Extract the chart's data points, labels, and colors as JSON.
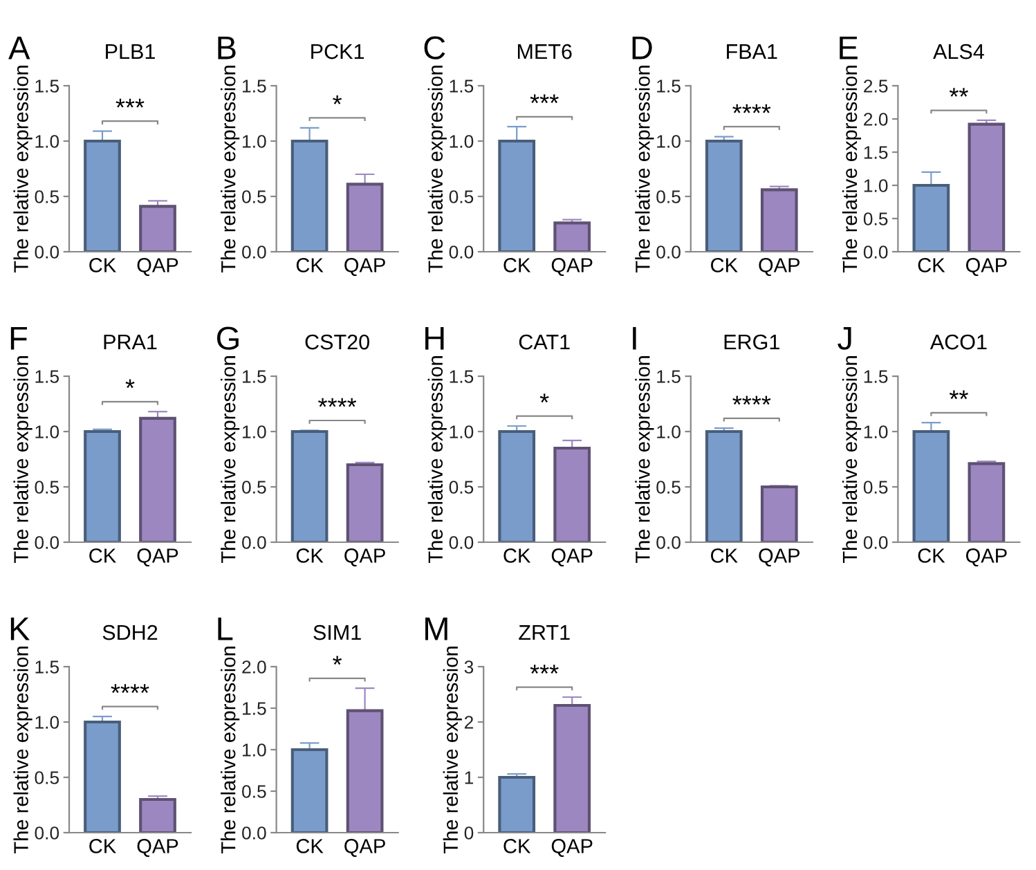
{
  "chart_data": [
    {
      "type": "bar",
      "title": "PLB1",
      "ylabel": "The relative expression",
      "categories": [
        "CK",
        "QAP"
      ],
      "values": [
        1.0,
        0.41
      ],
      "errors": [
        0.09,
        0.05
      ],
      "colors": [
        "#7a9ccb",
        "#9d87c0"
      ],
      "ylim": [
        0,
        1.5
      ],
      "yticks": [
        {
          "value": 0,
          "label": "0.0"
        },
        {
          "value": 0.5,
          "label": "0.5"
        },
        {
          "value": 1,
          "label": "1.0"
        },
        {
          "value": 1.5,
          "label": "1.5"
        }
      ],
      "annotations": [
        "A",
        "***"
      ]
    },
    {
      "type": "bar",
      "title": "PCK1",
      "ylabel": "The relative expression",
      "categories": [
        "CK",
        "QAP"
      ],
      "values": [
        1.0,
        0.61
      ],
      "errors": [
        0.12,
        0.09
      ],
      "colors": [
        "#7a9ccb",
        "#9d87c0"
      ],
      "ylim": [
        0,
        1.5
      ],
      "yticks": [
        {
          "value": 0,
          "label": "0.0"
        },
        {
          "value": 0.5,
          "label": "0.5"
        },
        {
          "value": 1,
          "label": "1.0"
        },
        {
          "value": 1.5,
          "label": "1.5"
        }
      ],
      "annotations": [
        "B",
        "*"
      ]
    },
    {
      "type": "bar",
      "title": "MET6",
      "ylabel": "The relative expression",
      "categories": [
        "CK",
        "QAP"
      ],
      "values": [
        1.0,
        0.26
      ],
      "errors": [
        0.13,
        0.03
      ],
      "colors": [
        "#7a9ccb",
        "#9d87c0"
      ],
      "ylim": [
        0,
        1.5
      ],
      "yticks": [
        {
          "value": 0,
          "label": "0.0"
        },
        {
          "value": 0.5,
          "label": "0.5"
        },
        {
          "value": 1,
          "label": "1.0"
        },
        {
          "value": 1.5,
          "label": "1.5"
        }
      ],
      "annotations": [
        "C",
        "***"
      ]
    },
    {
      "type": "bar",
      "title": "FBA1",
      "ylabel": "The relative expression",
      "categories": [
        "CK",
        "QAP"
      ],
      "values": [
        1.0,
        0.56
      ],
      "errors": [
        0.04,
        0.03
      ],
      "colors": [
        "#7a9ccb",
        "#9d87c0"
      ],
      "ylim": [
        0,
        1.5
      ],
      "yticks": [
        {
          "value": 0,
          "label": "0.0"
        },
        {
          "value": 0.5,
          "label": "0.5"
        },
        {
          "value": 1,
          "label": "1.0"
        },
        {
          "value": 1.5,
          "label": "1.5"
        }
      ],
      "annotations": [
        "D",
        "****"
      ]
    },
    {
      "type": "bar",
      "title": "ALS4",
      "ylabel": "The relative expression",
      "categories": [
        "CK",
        "QAP"
      ],
      "values": [
        1.0,
        1.92
      ],
      "errors": [
        0.2,
        0.06
      ],
      "colors": [
        "#7a9ccb",
        "#9d87c0"
      ],
      "ylim": [
        0,
        2.5
      ],
      "yticks": [
        {
          "value": 0,
          "label": "0.0"
        },
        {
          "value": 0.5,
          "label": "0.5"
        },
        {
          "value": 1,
          "label": "1.0"
        },
        {
          "value": 1.5,
          "label": "1.5"
        },
        {
          "value": 2,
          "label": "2.0"
        },
        {
          "value": 2.5,
          "label": "2.5"
        }
      ],
      "annotations": [
        "E",
        "**"
      ]
    },
    {
      "type": "bar",
      "title": "PRA1",
      "ylabel": "The relative expression",
      "categories": [
        "CK",
        "QAP"
      ],
      "values": [
        1.0,
        1.12
      ],
      "errors": [
        0.02,
        0.06
      ],
      "colors": [
        "#7a9ccb",
        "#9d87c0"
      ],
      "ylim": [
        0,
        1.5
      ],
      "yticks": [
        {
          "value": 0,
          "label": "0.0"
        },
        {
          "value": 0.5,
          "label": "0.5"
        },
        {
          "value": 1,
          "label": "1.0"
        },
        {
          "value": 1.5,
          "label": "1.5"
        }
      ],
      "annotations": [
        "F",
        "*"
      ]
    },
    {
      "type": "bar",
      "title": "CST20",
      "ylabel": "The relative expression",
      "categories": [
        "CK",
        "QAP"
      ],
      "values": [
        1.0,
        0.7
      ],
      "errors": [
        0.01,
        0.02
      ],
      "colors": [
        "#7a9ccb",
        "#9d87c0"
      ],
      "ylim": [
        0,
        1.5
      ],
      "yticks": [
        {
          "value": 0,
          "label": "0.0"
        },
        {
          "value": 0.5,
          "label": "0.5"
        },
        {
          "value": 1,
          "label": "1.0"
        },
        {
          "value": 1.5,
          "label": "1.5"
        }
      ],
      "annotations": [
        "G",
        "****"
      ]
    },
    {
      "type": "bar",
      "title": "CAT1",
      "ylabel": "The relative expression",
      "categories": [
        "CK",
        "QAP"
      ],
      "values": [
        1.0,
        0.85
      ],
      "errors": [
        0.05,
        0.07
      ],
      "colors": [
        "#7a9ccb",
        "#9d87c0"
      ],
      "ylim": [
        0,
        1.5
      ],
      "yticks": [
        {
          "value": 0,
          "label": "0.0"
        },
        {
          "value": 0.5,
          "label": "0.5"
        },
        {
          "value": 1,
          "label": "1.0"
        },
        {
          "value": 1.5,
          "label": "1.5"
        }
      ],
      "annotations": [
        "H",
        "*"
      ]
    },
    {
      "type": "bar",
      "title": "ERG1",
      "ylabel": "The relative expression",
      "categories": [
        "CK",
        "QAP"
      ],
      "values": [
        1.0,
        0.5
      ],
      "errors": [
        0.03,
        0.01
      ],
      "colors": [
        "#7a9ccb",
        "#9d87c0"
      ],
      "ylim": [
        0,
        1.5
      ],
      "yticks": [
        {
          "value": 0,
          "label": "0.0"
        },
        {
          "value": 0.5,
          "label": "0.5"
        },
        {
          "value": 1,
          "label": "1.0"
        },
        {
          "value": 1.5,
          "label": "1.5"
        }
      ],
      "annotations": [
        "I",
        "****"
      ]
    },
    {
      "type": "bar",
      "title": "ACO1",
      "ylabel": "The relative expression",
      "categories": [
        "CK",
        "QAP"
      ],
      "values": [
        1.0,
        0.71
      ],
      "errors": [
        0.08,
        0.02
      ],
      "colors": [
        "#7a9ccb",
        "#9d87c0"
      ],
      "ylim": [
        0,
        1.5
      ],
      "yticks": [
        {
          "value": 0,
          "label": "0.0"
        },
        {
          "value": 0.5,
          "label": "0.5"
        },
        {
          "value": 1,
          "label": "1.0"
        },
        {
          "value": 1.5,
          "label": "1.5"
        }
      ],
      "annotations": [
        "J",
        "**"
      ]
    },
    {
      "type": "bar",
      "title": "SDH2",
      "ylabel": "The relative expression",
      "categories": [
        "CK",
        "QAP"
      ],
      "values": [
        1.0,
        0.3
      ],
      "errors": [
        0.05,
        0.03
      ],
      "colors": [
        "#7a9ccb",
        "#9d87c0"
      ],
      "ylim": [
        0,
        1.5
      ],
      "yticks": [
        {
          "value": 0,
          "label": "0.0"
        },
        {
          "value": 0.5,
          "label": "0.5"
        },
        {
          "value": 1,
          "label": "1.0"
        },
        {
          "value": 1.5,
          "label": "1.5"
        }
      ],
      "annotations": [
        "K",
        "****"
      ]
    },
    {
      "type": "bar",
      "title": "SIM1",
      "ylabel": "The relative expression",
      "categories": [
        "CK",
        "QAP"
      ],
      "values": [
        1.0,
        1.47
      ],
      "errors": [
        0.08,
        0.27
      ],
      "colors": [
        "#7a9ccb",
        "#9d87c0"
      ],
      "ylim": [
        0,
        2.0
      ],
      "yticks": [
        {
          "value": 0,
          "label": "0.0"
        },
        {
          "value": 0.5,
          "label": "0.5"
        },
        {
          "value": 1,
          "label": "1.0"
        },
        {
          "value": 1.5,
          "label": "1.5"
        },
        {
          "value": 2,
          "label": "2.0"
        }
      ],
      "annotations": [
        "L",
        "*"
      ]
    },
    {
      "type": "bar",
      "title": "ZRT1",
      "ylabel": "The relative expression",
      "categories": [
        "CK",
        "QAP"
      ],
      "values": [
        1.0,
        2.3
      ],
      "errors": [
        0.06,
        0.15
      ],
      "colors": [
        "#7a9ccb",
        "#9d87c0"
      ],
      "ylim": [
        0,
        3
      ],
      "yticks": [
        0,
        1,
        2,
        3
      ],
      "annotations": [
        "M",
        "***"
      ]
    }
  ]
}
